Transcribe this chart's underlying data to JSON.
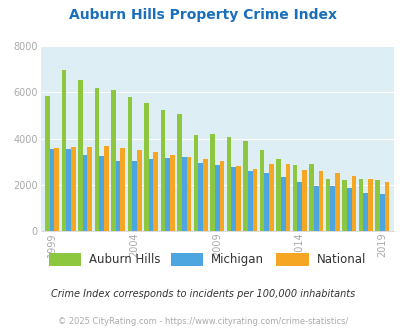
{
  "title": "Auburn Hills Property Crime Index",
  "title_color": "#1a6fbb",
  "years": [
    1999,
    2000,
    2001,
    2002,
    2003,
    2004,
    2005,
    2006,
    2007,
    2008,
    2009,
    2010,
    2011,
    2012,
    2013,
    2014,
    2015,
    2016,
    2017,
    2018,
    2019,
    2020,
    2021
  ],
  "auburn_hills": [
    5850,
    6950,
    6550,
    6200,
    6100,
    5800,
    5550,
    5250,
    5050,
    4150,
    4200,
    4050,
    3900,
    3500,
    3100,
    2850,
    2900,
    2250,
    2200,
    2250,
    2200,
    null,
    null
  ],
  "michigan": [
    3550,
    3550,
    3300,
    3250,
    3050,
    3050,
    3100,
    3150,
    3200,
    2950,
    2850,
    2750,
    2600,
    2500,
    2350,
    2100,
    1950,
    1950,
    1850,
    1650,
    1600,
    null,
    null
  ],
  "national": [
    3600,
    3650,
    3650,
    3700,
    3600,
    3500,
    3400,
    3300,
    3200,
    3100,
    3050,
    2800,
    2700,
    2900,
    2900,
    2650,
    2600,
    2500,
    2400,
    2250,
    2100,
    null,
    null
  ],
  "auburn_hills_color": "#8dc63f",
  "michigan_color": "#4da6e0",
  "national_color": "#f5a623",
  "bg_color": "#deeef5",
  "ylim": [
    0,
    8000
  ],
  "yticks": [
    0,
    2000,
    4000,
    6000,
    8000
  ],
  "xtick_years": [
    1999,
    2004,
    2009,
    2014,
    2019
  ],
  "grid_color": "#ffffff",
  "annotation": "Crime Index corresponds to incidents per 100,000 inhabitants",
  "copyright": "© 2025 CityRating.com - https://www.cityrating.com/crime-statistics/",
  "legend_labels": [
    "Auburn Hills",
    "Michigan",
    "National"
  ]
}
